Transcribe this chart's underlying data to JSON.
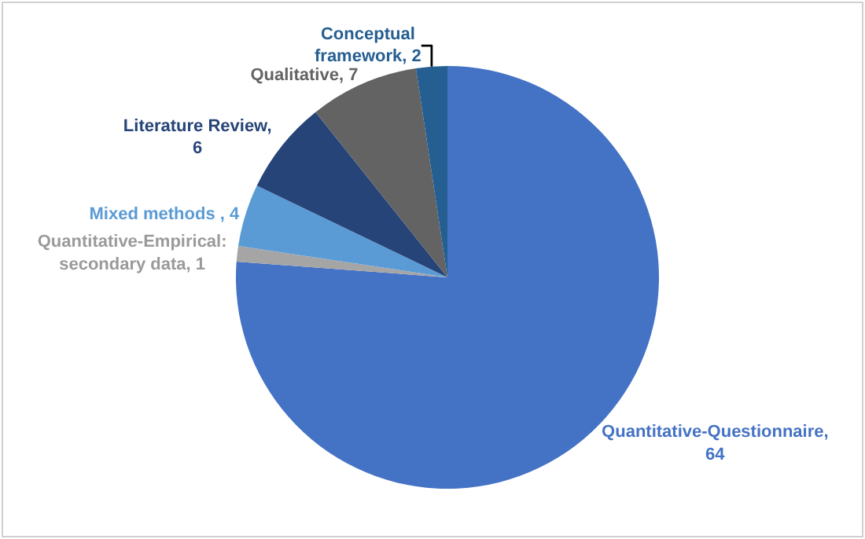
{
  "chart_data": {
    "type": "pie",
    "categories": [
      "Quantitative-Questionnaire, 64",
      "Quantitative-Empirical: secondary data, 1",
      "Mixed methods , 4",
      "Literature Review, 6",
      "Qualitative, 7",
      "Conceptual framework, 2"
    ],
    "values": [
      64,
      1,
      4,
      6,
      7,
      2
    ],
    "colors": [
      "#4472c4",
      "#a5a5a5",
      "#5b9bd5",
      "#264478",
      "#636363",
      "#255e91"
    ],
    "legend": false
  }
}
